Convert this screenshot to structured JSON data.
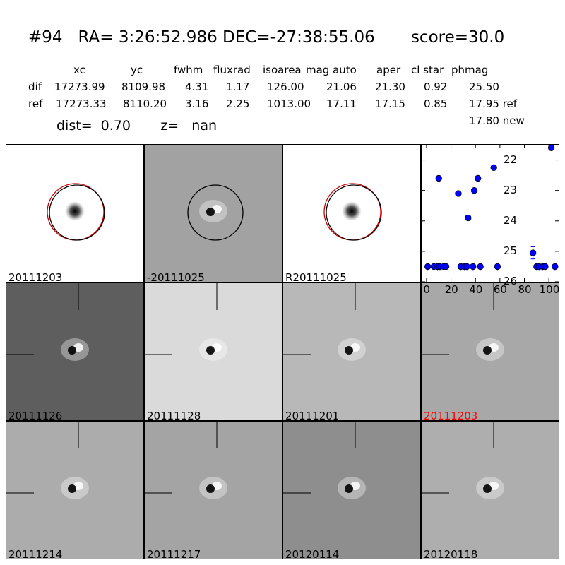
{
  "header": {
    "title": "#94   RA= 3:26:52.986 DEC=-27:38:55.06       score=30.0",
    "columns": [
      "xc",
      "yc",
      "fwhm",
      "fluxrad",
      "isoarea",
      "mag auto",
      "aper",
      "cl star",
      "phmag"
    ],
    "rows": [
      {
        "name": "dif",
        "values": [
          "17273.99",
          "8109.98",
          "4.31",
          "1.17",
          "126.00",
          "21.06",
          "21.30",
          "0.92",
          "25.50"
        ]
      },
      {
        "name": "ref",
        "values": [
          "17273.33",
          "8110.20",
          "3.16",
          "2.25",
          "1013.00",
          "17.11",
          "17.15",
          "0.85",
          "17.95 ref"
        ]
      }
    ],
    "extra_phmag": "17.80 new",
    "dist_line": "dist=  0.70       z=   nan"
  },
  "stamps": [
    {
      "label": "20111203",
      "bg": "#ffffff",
      "style": "star",
      "circles": [
        "red",
        "black"
      ]
    },
    {
      "label": "-20111025",
      "bg": "#a2a2a2",
      "style": "dipole",
      "circles": [
        "black"
      ]
    },
    {
      "label": "R20111025",
      "bg": "#ffffff",
      "style": "star",
      "circles": [
        "red",
        "black"
      ]
    },
    {
      "label": "20111126",
      "bg": "#5e5e5e",
      "style": "dipole",
      "crosshair": true
    },
    {
      "label": "20111128",
      "bg": "#dadada",
      "style": "dipole",
      "crosshair": true
    },
    {
      "label": "20111201",
      "bg": "#b8b8b8",
      "style": "dipole",
      "crosshair": true
    },
    {
      "label": "20111203",
      "bg": "#a8a8a8",
      "style": "dipole",
      "crosshair": true,
      "label_color": "#ff0000"
    },
    {
      "label": "20111214",
      "bg": "#acacac",
      "style": "dipole",
      "crosshair": true
    },
    {
      "label": "20111217",
      "bg": "#a4a4a4",
      "style": "dipole",
      "crosshair": true
    },
    {
      "label": "20120114",
      "bg": "#8e8e8e",
      "style": "dipole",
      "crosshair": true
    },
    {
      "label": "20120118",
      "bg": "#aeaeae",
      "style": "dipole",
      "crosshair": true
    }
  ],
  "chart_data": {
    "type": "scatter",
    "xlim": [
      -4,
      108
    ],
    "ylim": [
      26,
      21.5
    ],
    "y_inverted": true,
    "xticks": [
      0,
      20,
      40,
      60,
      80,
      100
    ],
    "yticks": [
      22,
      23,
      24,
      25,
      26
    ],
    "marker_color": "#0000ff",
    "points": [
      {
        "x": 10,
        "y": 22.6
      },
      {
        "x": 26,
        "y": 23.1
      },
      {
        "x": 34,
        "y": 23.9
      },
      {
        "x": 39,
        "y": 23.0
      },
      {
        "x": 42,
        "y": 22.6
      },
      {
        "x": 55,
        "y": 22.25
      },
      {
        "x": 87,
        "y": 25.05,
        "err": 0.2
      },
      {
        "x": 102,
        "y": 21.6
      }
    ],
    "upper_limits": [
      {
        "x": 1,
        "y": 25.5
      },
      {
        "x": 6,
        "y": 25.5
      },
      {
        "x": 9,
        "y": 25.5
      },
      {
        "x": 11,
        "y": 25.5
      },
      {
        "x": 14,
        "y": 25.5
      },
      {
        "x": 16,
        "y": 25.5
      },
      {
        "x": 28,
        "y": 25.5
      },
      {
        "x": 31,
        "y": 25.5
      },
      {
        "x": 33,
        "y": 25.5
      },
      {
        "x": 38,
        "y": 25.5
      },
      {
        "x": 44,
        "y": 25.5
      },
      {
        "x": 58,
        "y": 25.5
      },
      {
        "x": 90,
        "y": 25.5
      },
      {
        "x": 92,
        "y": 25.5
      },
      {
        "x": 95,
        "y": 25.5
      },
      {
        "x": 97,
        "y": 25.5
      },
      {
        "x": 105,
        "y": 25.5
      }
    ]
  }
}
